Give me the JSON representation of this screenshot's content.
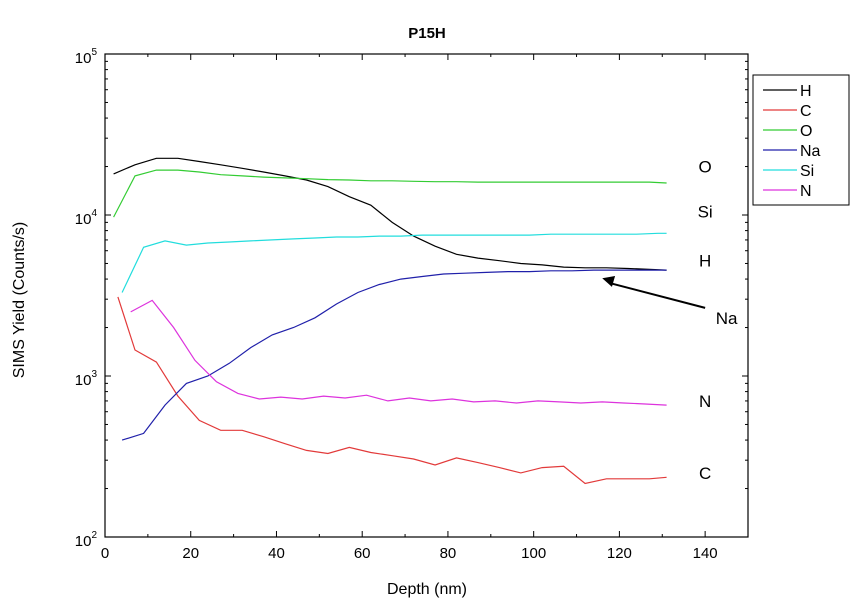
{
  "chart_data": {
    "type": "line",
    "title": "P15H",
    "xlabel": "Depth (nm)",
    "ylabel": "SIMS Yield (Counts/s)",
    "xlim": [
      0,
      150
    ],
    "ylim": [
      100,
      100000
    ],
    "yscale": "log",
    "x_ticks": [
      0,
      20,
      40,
      60,
      80,
      100,
      120,
      140
    ],
    "y_ticks": [
      {
        "value": 100,
        "base": "10",
        "exp": "2"
      },
      {
        "value": 1000,
        "base": "10",
        "exp": "3"
      },
      {
        "value": 10000,
        "base": "10",
        "exp": "4"
      },
      {
        "value": 100000,
        "base": "10",
        "exp": "5"
      }
    ],
    "grid": false,
    "legend_position": "top-right, outside plot",
    "series": [
      {
        "name": "H",
        "color": "#000000",
        "x": [
          2,
          7,
          12,
          17,
          22,
          27,
          32,
          37,
          42,
          47,
          52,
          57,
          62,
          67,
          72,
          77,
          82,
          87,
          92,
          97,
          102,
          107,
          112,
          117,
          122,
          127,
          131
        ],
        "y": [
          18000,
          20500,
          22500,
          22500,
          21500,
          20500,
          19500,
          18500,
          17500,
          16500,
          15000,
          13000,
          11500,
          9000,
          7400,
          6400,
          5700,
          5400,
          5200,
          5000,
          4900,
          4750,
          4700,
          4700,
          4650,
          4600,
          4550
        ]
      },
      {
        "name": "C",
        "color": "#e23a3a",
        "x": [
          3,
          7,
          12,
          17,
          22,
          27,
          32,
          37,
          42,
          47,
          52,
          57,
          62,
          67,
          72,
          77,
          82,
          87,
          92,
          97,
          102,
          107,
          112,
          117,
          122,
          127,
          131
        ],
        "y": [
          3100,
          1450,
          1220,
          750,
          530,
          460,
          460,
          420,
          380,
          345,
          330,
          360,
          335,
          320,
          305,
          280,
          310,
          290,
          270,
          250,
          270,
          275,
          215,
          230,
          230,
          230,
          235
        ]
      },
      {
        "name": "O",
        "color": "#33cc33",
        "x": [
          2,
          7,
          12,
          17,
          22,
          27,
          32,
          37,
          42,
          47,
          52,
          57,
          62,
          67,
          72,
          77,
          82,
          87,
          92,
          97,
          102,
          107,
          112,
          117,
          122,
          127,
          131
        ],
        "y": [
          9700,
          17500,
          19000,
          19000,
          18500,
          17800,
          17500,
          17200,
          17000,
          16800,
          16600,
          16500,
          16300,
          16300,
          16200,
          16100,
          16100,
          16000,
          16000,
          16000,
          16000,
          16000,
          16000,
          16000,
          16000,
          16000,
          15800
        ]
      },
      {
        "name": "Na",
        "color": "#2020aa",
        "x": [
          4,
          9,
          14,
          19,
          24,
          29,
          34,
          39,
          44,
          49,
          54,
          59,
          64,
          69,
          74,
          79,
          84,
          89,
          94,
          99,
          104,
          109,
          114,
          119,
          124,
          129,
          131
        ],
        "y": [
          400,
          440,
          660,
          900,
          1000,
          1200,
          1500,
          1800,
          2000,
          2300,
          2800,
          3300,
          3700,
          4000,
          4150,
          4300,
          4350,
          4400,
          4450,
          4450,
          4500,
          4500,
          4550,
          4550,
          4550,
          4550,
          4550
        ]
      },
      {
        "name": "Si",
        "color": "#22dddd",
        "x": [
          4,
          9,
          14,
          19,
          24,
          29,
          34,
          39,
          44,
          49,
          54,
          59,
          64,
          69,
          74,
          79,
          84,
          89,
          94,
          99,
          104,
          109,
          114,
          119,
          124,
          129,
          131
        ],
        "y": [
          3300,
          6300,
          6900,
          6500,
          6700,
          6800,
          6900,
          7000,
          7100,
          7200,
          7300,
          7300,
          7400,
          7400,
          7500,
          7500,
          7500,
          7500,
          7500,
          7500,
          7600,
          7600,
          7600,
          7600,
          7600,
          7700,
          7700
        ]
      },
      {
        "name": "N",
        "color": "#dd33dd",
        "x": [
          6,
          11,
          16,
          21,
          26,
          31,
          36,
          41,
          46,
          51,
          56,
          61,
          66,
          71,
          76,
          81,
          86,
          91,
          96,
          101,
          106,
          111,
          116,
          121,
          126,
          131
        ],
        "y": [
          2500,
          2950,
          2000,
          1250,
          920,
          780,
          720,
          740,
          720,
          750,
          730,
          760,
          700,
          730,
          700,
          720,
          690,
          700,
          680,
          700,
          690,
          680,
          690,
          680,
          670,
          660
        ]
      }
    ],
    "annotations": [
      {
        "text": "O",
        "x": 140,
        "y": 20000
      },
      {
        "text": "Si",
        "x": 140,
        "y": 10500
      },
      {
        "text": "H",
        "x": 140,
        "y": 5200
      },
      {
        "text": "Na",
        "x": 145,
        "y": 2300
      },
      {
        "text": "N",
        "x": 140,
        "y": 700
      },
      {
        "text": "C",
        "x": 140,
        "y": 250
      }
    ],
    "arrow": {
      "from_x": 140,
      "from_y": 2650,
      "to_x": 116,
      "to_y": 4050
    }
  }
}
